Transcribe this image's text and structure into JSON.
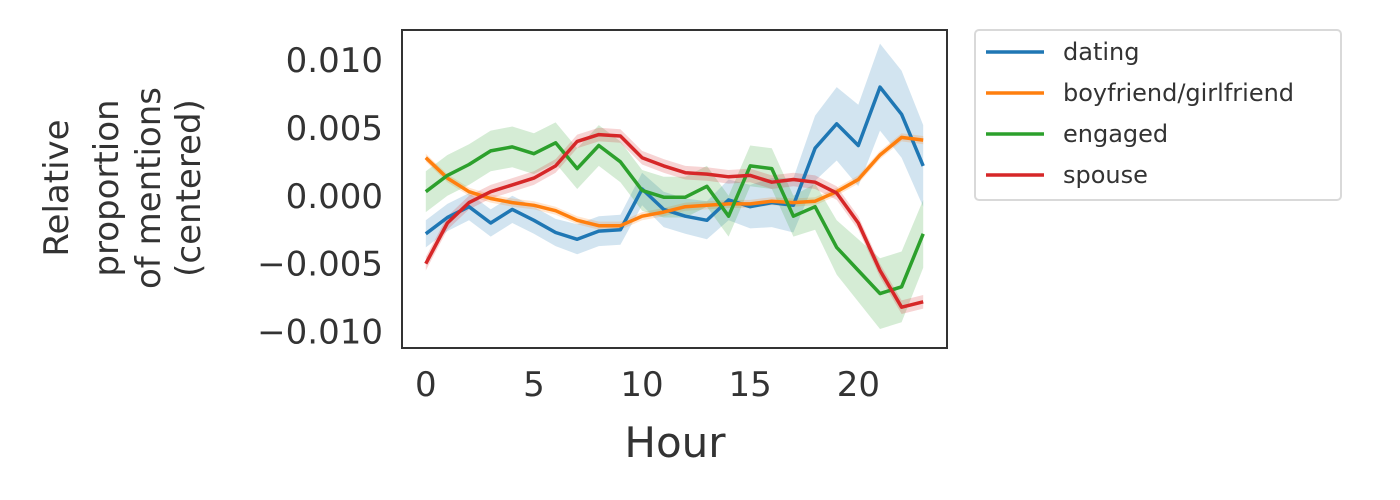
{
  "chart_data": {
    "type": "line",
    "xlabel": "Hour",
    "ylabel_lines": [
      "Relative",
      "proportion",
      "of mentions",
      "(centered)"
    ],
    "xlim": [
      -1.1,
      24.1
    ],
    "ylim": [
      -0.0112,
      0.0122
    ],
    "xticks": [
      0,
      5,
      10,
      15,
      20
    ],
    "xtick_labels": [
      "0",
      "5",
      "10",
      "15",
      "20"
    ],
    "yticks": [
      0.01,
      0.005,
      0.0,
      -0.005,
      -0.01
    ],
    "ytick_labels": [
      "0.010",
      "0.005",
      "0.000",
      "−0.005",
      "−0.010"
    ],
    "grid": false,
    "legend_placement": "outside upper right",
    "x": [
      0,
      1,
      2,
      3,
      4,
      5,
      6,
      7,
      8,
      9,
      10,
      11,
      12,
      13,
      14,
      15,
      16,
      17,
      18,
      19,
      20,
      21,
      22,
      23
    ],
    "series": [
      {
        "name": "dating",
        "color": "#1f77b4",
        "values": [
          -0.0028,
          -0.0016,
          -0.0008,
          -0.002,
          -0.001,
          -0.0018,
          -0.0027,
          -0.0032,
          -0.0026,
          -0.0025,
          0.0005,
          -0.001,
          -0.0015,
          -0.0018,
          -0.0003,
          -0.0008,
          -0.0005,
          -0.0007,
          0.0035,
          0.0053,
          0.0037,
          0.008,
          0.006,
          0.0022
        ],
        "band": [
          0.001,
          0.001,
          0.001,
          0.001,
          0.001,
          0.001,
          0.001,
          0.0011,
          0.0011,
          0.0011,
          0.0012,
          0.0013,
          0.0013,
          0.0014,
          0.0015,
          0.0016,
          0.0018,
          0.002,
          0.0024,
          0.0027,
          0.003,
          0.0032,
          0.0032,
          0.003
        ]
      },
      {
        "name": "boyfriend/girlfriend",
        "color": "#ff7f0e",
        "values": [
          0.0028,
          0.0013,
          0.0003,
          -0.0002,
          -0.0005,
          -0.0007,
          -0.0011,
          -0.0018,
          -0.0022,
          -0.0022,
          -0.0015,
          -0.0012,
          -0.0008,
          -0.0007,
          -0.0006,
          -0.0006,
          -0.0004,
          -0.0005,
          -0.0004,
          0.0003,
          0.0012,
          0.003,
          0.0043,
          0.0041
        ],
        "band": [
          0.0003,
          0.0003,
          0.0003,
          0.0003,
          0.0003,
          0.0003,
          0.0003,
          0.0003,
          0.0003,
          0.0003,
          0.0003,
          0.0003,
          0.0003,
          0.0003,
          0.0003,
          0.0003,
          0.0003,
          0.0003,
          0.0003,
          0.0003,
          0.0003,
          0.0003,
          0.0003,
          0.0003
        ]
      },
      {
        "name": "engaged",
        "color": "#2ca02c",
        "values": [
          0.0003,
          0.0015,
          0.0023,
          0.0033,
          0.0036,
          0.0031,
          0.0039,
          0.002,
          0.0037,
          0.0025,
          0.0004,
          -0.0001,
          -0.0001,
          0.0007,
          -0.0015,
          0.0022,
          0.002,
          -0.0015,
          -0.0008,
          -0.0038,
          -0.0055,
          -0.0072,
          -0.0067,
          -0.0028
        ],
        "band": [
          0.0015,
          0.0015,
          0.0015,
          0.0015,
          0.0015,
          0.0015,
          0.0015,
          0.0015,
          0.0015,
          0.0015,
          0.0015,
          0.0015,
          0.0015,
          0.0015,
          0.0015,
          0.0015,
          0.0015,
          0.0015,
          0.0017,
          0.002,
          0.0023,
          0.0026,
          0.0026,
          0.0025
        ]
      },
      {
        "name": "spouse",
        "color": "#d62728",
        "values": [
          -0.005,
          -0.002,
          -0.0005,
          0.0003,
          0.0008,
          0.0013,
          0.0022,
          0.004,
          0.0045,
          0.0044,
          0.0028,
          0.0022,
          0.0017,
          0.0016,
          0.0014,
          0.0015,
          0.001,
          0.0012,
          0.001,
          0.0002,
          -0.002,
          -0.0055,
          -0.0082,
          -0.0078
        ],
        "band": [
          0.0005,
          0.0005,
          0.0005,
          0.0005,
          0.0005,
          0.0005,
          0.0005,
          0.0005,
          0.0005,
          0.0005,
          0.0005,
          0.0005,
          0.0005,
          0.0005,
          0.0005,
          0.0005,
          0.0005,
          0.0005,
          0.0005,
          0.0005,
          0.0005,
          0.0005,
          0.0005,
          0.0005
        ]
      }
    ]
  }
}
